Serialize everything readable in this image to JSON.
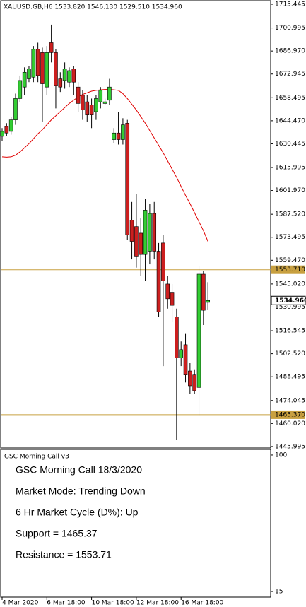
{
  "chart_data": {
    "type": "candlestick",
    "title": "XAUUSD.GB,H6  1533.820 1546.130 1529.510 1534.960",
    "categories": [
      "4 Mar 2020",
      null,
      null,
      null,
      null,
      null,
      null,
      null,
      null,
      null,
      "6 Mar 18:00",
      null,
      null,
      null,
      null,
      null,
      null,
      null,
      null,
      null,
      "10 Mar 18:00",
      null,
      null,
      null,
      null,
      null,
      null,
      null,
      null,
      null,
      "12 Mar 18:00",
      null,
      null,
      null,
      null,
      null,
      null,
      null,
      null,
      null,
      "16 Mar 18:00",
      null,
      null,
      null,
      null,
      null,
      null
    ],
    "open": [
      1635,
      1641,
      1638,
      1645,
      1658,
      1665,
      1670,
      1671,
      1688,
      1686,
      1665,
      1692,
      1686,
      1670,
      1669,
      1668,
      1676,
      1665,
      1660,
      1656,
      1654,
      1650,
      1656,
      1655,
      1657,
      1633,
      1637,
      1633,
      1643,
      1584,
      1580,
      1576,
      1563,
      1565,
      1588,
      1565,
      1570,
      1545,
      1540,
      1525,
      1500,
      1508,
      1492,
      1490,
      1482,
      1551,
      1533.82
    ],
    "high": [
      1640,
      1643,
      1647,
      1661,
      1672,
      1677,
      1678,
      1690,
      1692,
      1689,
      1690,
      1703,
      1688,
      1674,
      1680,
      1677,
      1678,
      1668,
      1663,
      1660,
      1658,
      1660,
      1665,
      1658,
      1670,
      1640,
      1650,
      1646,
      1645,
      1595,
      1600,
      1585,
      1597,
      1594,
      1595,
      1570,
      1575,
      1550,
      1545,
      1530,
      1510,
      1515,
      1497,
      1493,
      1556,
      1553,
      1546.13
    ],
    "low": [
      1632,
      1635,
      1636,
      1642,
      1656,
      1660,
      1668,
      1668,
      1668,
      1644,
      1660,
      1680,
      1652,
      1662,
      1664,
      1665,
      1660,
      1650,
      1645,
      1644,
      1640,
      1645,
      1652,
      1654,
      1654,
      1631,
      1630,
      1630,
      1572,
      1560,
      1555,
      1550,
      1547,
      1557,
      1560,
      1525,
      1495,
      1530,
      1522,
      1450,
      1495,
      1485,
      1478,
      1478,
      1465,
      1520,
      1529.51
    ],
    "close": [
      1638,
      1637,
      1645,
      1658,
      1669,
      1674,
      1676,
      1688,
      1672,
      1667,
      1686,
      1686,
      1666,
      1665,
      1676,
      1675,
      1668,
      1655,
      1651,
      1648,
      1648,
      1658,
      1663,
      1656,
      1665,
      1637,
      1633,
      1642,
      1575,
      1571,
      1562,
      1563,
      1590,
      1588,
      1565,
      1528,
      1547,
      1536,
      1532,
      1500,
      1505,
      1490,
      1483,
      1480,
      1551,
      1529,
      1534.96
    ],
    "ma": {
      "color": "#e00000",
      "values": [
        1622.5,
        1622.3,
        1622.5,
        1623.5,
        1625.5,
        1628,
        1630.5,
        1633.5,
        1636.5,
        1639,
        1642,
        1645,
        1647.5,
        1650,
        1652.5,
        1655,
        1657,
        1659,
        1660.5,
        1661.5,
        1662.5,
        1663,
        1663.3,
        1663.5,
        1663.5,
        1663.3,
        1663,
        1661,
        1658,
        1654.5,
        1651,
        1647,
        1643,
        1638.5,
        1634,
        1629.5,
        1625,
        1620,
        1615,
        1610,
        1604.5,
        1599,
        1594,
        1588.5,
        1583,
        1577.5,
        1571
      ]
    },
    "up_color": "#32cd32",
    "down_color": "#cc1f1f",
    "ylim": [
      1445.1,
      1717.6
    ],
    "yticks": [
      {
        "value": 1715.445,
        "label": "1715.445"
      },
      {
        "value": 1700.995,
        "label": "1700.995"
      },
      {
        "value": 1686.97,
        "label": "1686.970"
      },
      {
        "value": 1672.945,
        "label": "1672.945"
      },
      {
        "value": 1658.495,
        "label": "1658.495"
      },
      {
        "value": 1644.47,
        "label": "1644.470"
      },
      {
        "value": 1630.445,
        "label": "1630.445"
      },
      {
        "value": 1615.995,
        "label": "1615.995"
      },
      {
        "value": 1601.97,
        "label": "1601.970"
      },
      {
        "value": 1587.52,
        "label": "1587.520"
      },
      {
        "value": 1573.495,
        "label": "1573.495"
      },
      {
        "value": 1559.47,
        "label": "1559.470"
      },
      {
        "value": 1545.02,
        "label": "1545.020"
      },
      {
        "value": 1530.995,
        "label": "1530.995"
      },
      {
        "value": 1516.545,
        "label": "1516.545"
      },
      {
        "value": 1502.52,
        "label": "1502.520"
      },
      {
        "value": 1488.495,
        "label": "1488.495"
      },
      {
        "value": 1474.045,
        "label": "1474.045"
      },
      {
        "value": 1460.02,
        "label": "1460.020"
      },
      {
        "value": 1445.995,
        "label": "1445.995"
      }
    ],
    "levels": [
      {
        "value": 1553.71,
        "label": "1553.710",
        "color": "#c8a040"
      },
      {
        "value": 1465.37,
        "label": "1465.370",
        "color": "#c8a040"
      }
    ],
    "price_marker": {
      "value": 1534.96,
      "label": "1534.960"
    },
    "indicator": {
      "name": "GSC Morning Call v3",
      "ylim": [
        11.5,
        103.5
      ],
      "yticks": [
        100,
        15
      ],
      "heading": "GSC Morning Call 18/3/2020",
      "heading_color": "#c8a020",
      "lines": [
        "Market Mode: Trending Down",
        "6 Hr Market Cycle (D%): Up",
        "Support = 1465.37",
        "Resistance = 1553.71"
      ]
    }
  }
}
